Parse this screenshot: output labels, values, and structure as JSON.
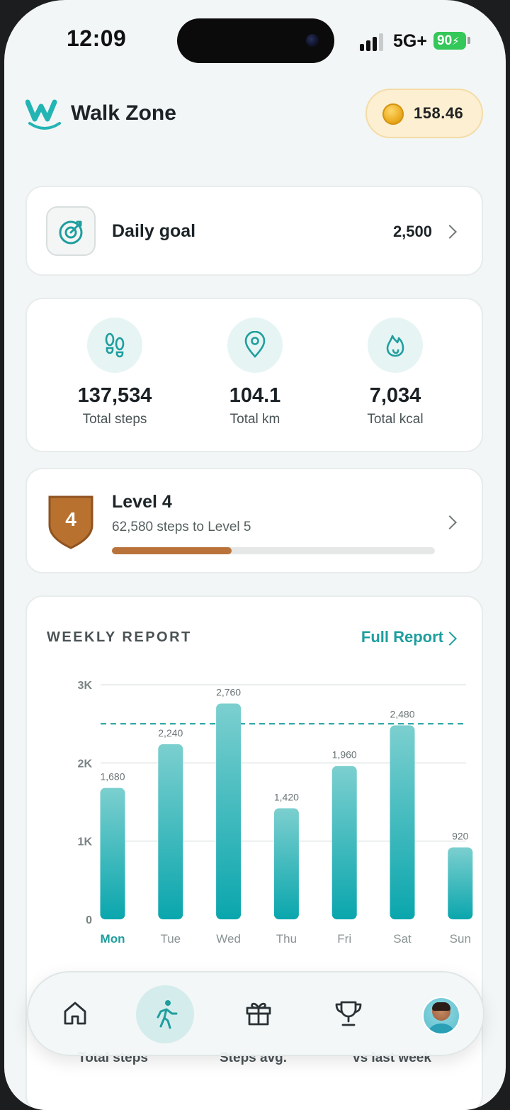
{
  "status_bar": {
    "time": "12:09",
    "network": "5G+",
    "battery": "90"
  },
  "header": {
    "app_name": "Walk Zone",
    "coins": "158.46"
  },
  "daily_goal": {
    "label": "Daily goal",
    "value": "2,500"
  },
  "stats": [
    {
      "value": "137,534",
      "label": "Total steps",
      "icon": "footprints-icon"
    },
    {
      "value": "104.1",
      "label": "Total km",
      "icon": "location-pin-icon"
    },
    {
      "value": "7,034",
      "label": "Total kcal",
      "icon": "flame-icon"
    }
  ],
  "level": {
    "title": "Level 4",
    "number": "4",
    "subtitle": "62,580 steps to Level 5",
    "progress": 0.37
  },
  "weekly_report": {
    "title": "WEEKLY REPORT",
    "link": "Full Report"
  },
  "chart_data": {
    "type": "bar",
    "categories": [
      "Mon",
      "Tue",
      "Wed",
      "Thu",
      "Fri",
      "Sat",
      "Sun"
    ],
    "values": [
      1680,
      2240,
      2760,
      1420,
      1960,
      2480,
      920
    ],
    "data_labels": [
      "1,680",
      "2,240",
      "2,760",
      "1,420",
      "1,960",
      "2,480",
      "920"
    ],
    "y_ticks": [
      {
        "value": 0,
        "label": "0"
      },
      {
        "value": 1000,
        "label": "1K"
      },
      {
        "value": 2000,
        "label": "2K"
      },
      {
        "value": 3000,
        "label": "3K"
      }
    ],
    "ylim": [
      0,
      3000
    ],
    "goal_line": 2500,
    "highlight": "Mon",
    "grid": true,
    "colors": {
      "bar_top": "#7ccfcf",
      "bar_bottom": "#0aa6ad",
      "goal_line": "#1f9e9e",
      "highlight_label": "#1f9e9e"
    }
  },
  "summary_labels": [
    "Total steps",
    "Steps avg.",
    "vs last week"
  ],
  "nav": [
    "home-icon",
    "walk-icon",
    "gift-icon",
    "trophy-icon",
    "avatar"
  ]
}
